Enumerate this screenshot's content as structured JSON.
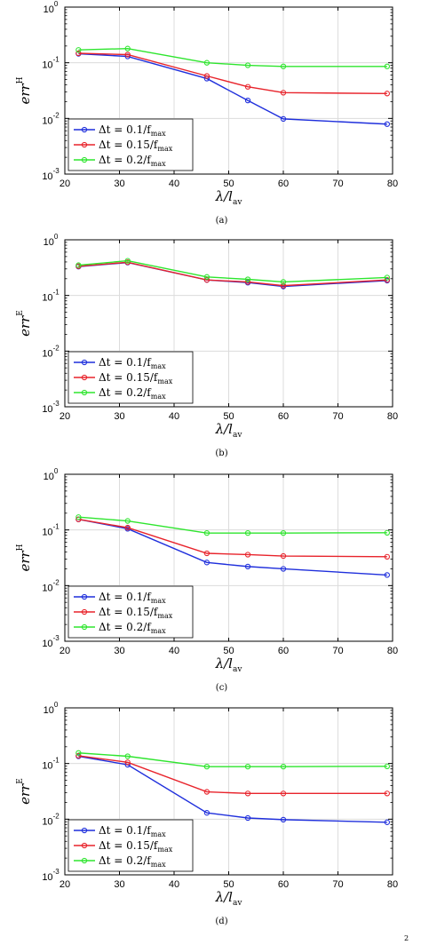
{
  "colors": {
    "blue": "#1f2fdc",
    "red": "#e8232b",
    "green": "#2ee52e",
    "grid": "#dcdcdc",
    "axis": "#000000"
  },
  "corner_mark": "2",
  "chart_data": [
    {
      "type": "line",
      "caption": "(a)",
      "ylabel": "err",
      "ylabel_sup": "H",
      "xlabel": "λ/l",
      "xlabel_sub": "av",
      "xlim": [
        20,
        80
      ],
      "ylim": [
        0.001,
        1
      ],
      "yscale": "log",
      "grid": true,
      "legend_loc": "lower-left",
      "x": [
        22.5,
        31.5,
        46,
        53.5,
        60,
        79
      ],
      "series": [
        {
          "name": "Δt = 0.1/f",
          "sub": "max",
          "color": "#1f2fdc",
          "values": [
            0.145,
            0.13,
            0.052,
            0.021,
            0.0098,
            0.0079
          ]
        },
        {
          "name": "Δt = 0.15/f",
          "sub": "max",
          "color": "#e8232b",
          "values": [
            0.148,
            0.14,
            0.058,
            0.037,
            0.029,
            0.028
          ]
        },
        {
          "name": "Δt = 0.2/f",
          "sub": "max",
          "color": "#2ee52e",
          "values": [
            0.17,
            0.18,
            0.1,
            0.09,
            0.086,
            0.086
          ]
        }
      ]
    },
    {
      "type": "line",
      "caption": "(b)",
      "ylabel": "err",
      "ylabel_sup": "E",
      "xlabel": "λ/l",
      "xlabel_sub": "av",
      "xlim": [
        20,
        80
      ],
      "ylim": [
        0.001,
        1
      ],
      "yscale": "log",
      "grid": true,
      "legend_loc": "lower-left",
      "x": [
        22.5,
        31.5,
        46,
        53.5,
        60,
        79
      ],
      "series": [
        {
          "name": "Δt = 0.1/f",
          "sub": "max",
          "color": "#1f2fdc",
          "values": [
            0.33,
            0.39,
            0.19,
            0.17,
            0.145,
            0.185
          ]
        },
        {
          "name": "Δt = 0.15/f",
          "sub": "max",
          "color": "#e8232b",
          "values": [
            0.335,
            0.395,
            0.19,
            0.175,
            0.15,
            0.19
          ]
        },
        {
          "name": "Δt = 0.2/f",
          "sub": "max",
          "color": "#2ee52e",
          "values": [
            0.35,
            0.42,
            0.215,
            0.195,
            0.175,
            0.21
          ]
        }
      ]
    },
    {
      "type": "line",
      "caption": "(c)",
      "ylabel": "err",
      "ylabel_sup": "H",
      "xlabel": "λ/l",
      "xlabel_sub": "av",
      "xlim": [
        20,
        80
      ],
      "ylim": [
        0.001,
        1
      ],
      "yscale": "log",
      "grid": true,
      "legend_loc": "lower-left",
      "x": [
        22.5,
        31.5,
        46,
        53.5,
        60,
        79
      ],
      "series": [
        {
          "name": "Δt = 0.1/f",
          "sub": "max",
          "color": "#1f2fdc",
          "values": [
            0.155,
            0.105,
            0.026,
            0.022,
            0.02,
            0.0155
          ]
        },
        {
          "name": "Δt = 0.15/f",
          "sub": "max",
          "color": "#e8232b",
          "values": [
            0.155,
            0.11,
            0.038,
            0.036,
            0.034,
            0.033
          ]
        },
        {
          "name": "Δt = 0.2/f",
          "sub": "max",
          "color": "#2ee52e",
          "values": [
            0.17,
            0.145,
            0.088,
            0.088,
            0.088,
            0.089
          ]
        }
      ]
    },
    {
      "type": "line",
      "caption": "(d)",
      "ylabel": "err",
      "ylabel_sup": "E",
      "xlabel": "λ/l",
      "xlabel_sub": "av",
      "xlim": [
        20,
        80
      ],
      "ylim": [
        0.001,
        1
      ],
      "yscale": "log",
      "grid": true,
      "legend_loc": "lower-left",
      "x": [
        22.5,
        31.5,
        46,
        53.5,
        60,
        79
      ],
      "series": [
        {
          "name": "Δt = 0.1/f",
          "sub": "max",
          "color": "#1f2fdc",
          "values": [
            0.135,
            0.095,
            0.013,
            0.0105,
            0.0098,
            0.0088
          ]
        },
        {
          "name": "Δt = 0.15/f",
          "sub": "max",
          "color": "#e8232b",
          "values": [
            0.138,
            0.105,
            0.031,
            0.029,
            0.029,
            0.029
          ]
        },
        {
          "name": "Δt = 0.2/f",
          "sub": "max",
          "color": "#2ee52e",
          "values": [
            0.155,
            0.135,
            0.088,
            0.088,
            0.088,
            0.089
          ]
        }
      ]
    }
  ],
  "x_ticks": [
    20,
    30,
    40,
    50,
    60,
    70,
    80
  ],
  "y_ticks": [
    {
      "value": 1,
      "base": "10",
      "exp": "0"
    },
    {
      "value": 0.1,
      "base": "10",
      "exp": "-1"
    },
    {
      "value": 0.01,
      "base": "10",
      "exp": "-2"
    },
    {
      "value": 0.001,
      "base": "10",
      "exp": "-3"
    }
  ]
}
